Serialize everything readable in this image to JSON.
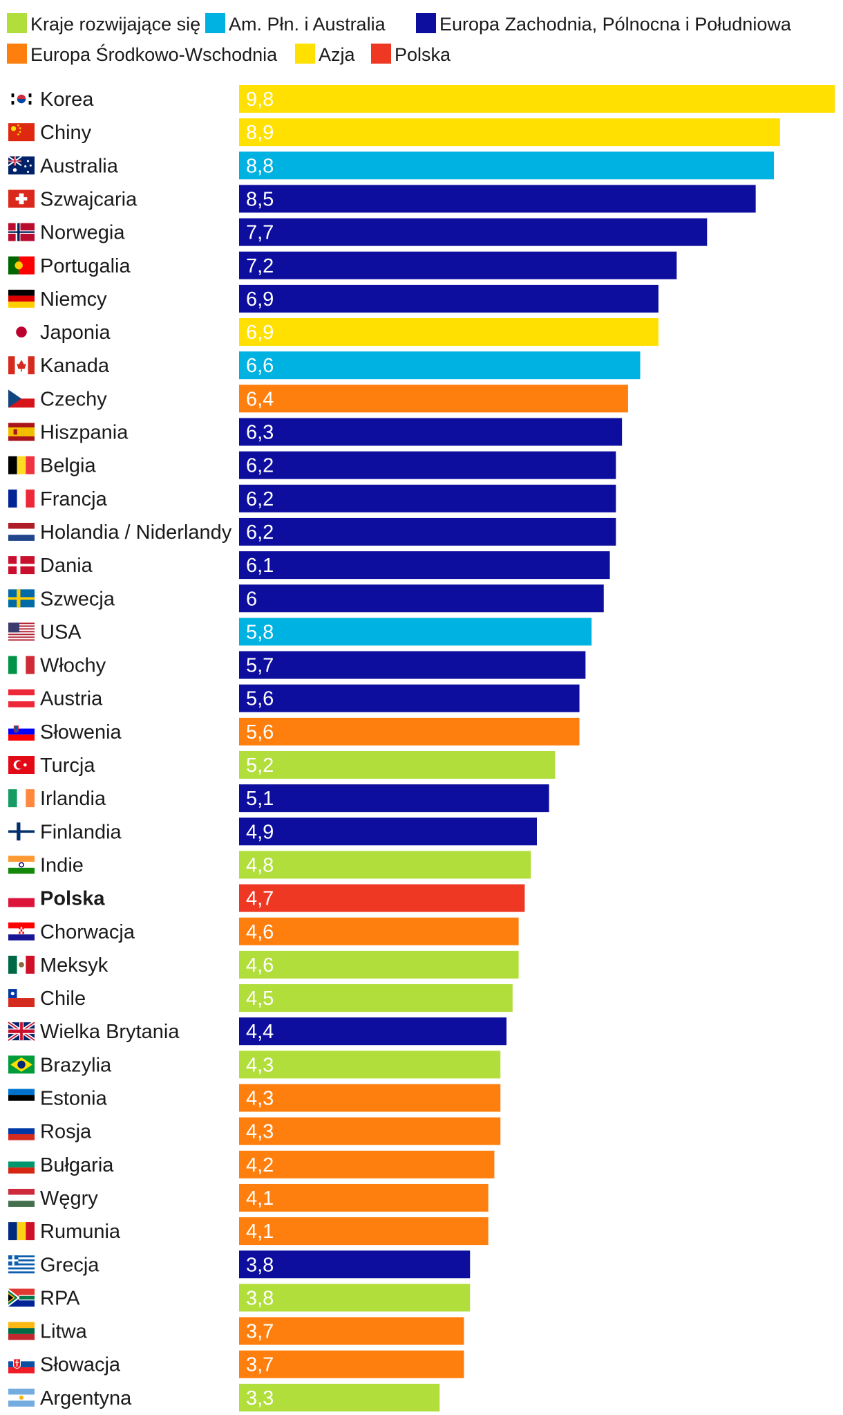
{
  "colors": {
    "rozwijajace": "#b1de3a",
    "amerykaAustralia": "#00b2e2",
    "europaZach": "#0d0d9e",
    "europaSrWsch": "#ff7f0e",
    "azja": "#ffe000",
    "polska": "#ef3823"
  },
  "legend": [
    {
      "label": "Kraje rozwijające się",
      "group": "rozwijajace"
    },
    {
      "label": "Am. Płn. i Australia",
      "group": "amerykaAustralia"
    },
    {
      "label": "Europa Zachodnia, Pólnocna i Południowa",
      "group": "europaZach"
    },
    {
      "label": "Europa Środkowo-Wschodnia",
      "group": "europaSrWsch"
    },
    {
      "label": "Azja",
      "group": "azja"
    },
    {
      "label": "Polska",
      "group": "polska"
    }
  ],
  "chart_data": {
    "type": "bar",
    "orientation": "horizontal",
    "xlim": [
      0,
      9.8
    ],
    "categories": [
      "Korea",
      "Chiny",
      "Australia",
      "Szwajcaria",
      "Norwegia",
      "Portugalia",
      "Niemcy",
      "Japonia",
      "Kanada",
      "Czechy",
      "Hiszpania",
      "Belgia",
      "Francja",
      "Holandia / Niderlandy",
      "Dania",
      "Szwecja",
      "USA",
      "Włochy",
      "Austria",
      "Słowenia",
      "Turcja",
      "Irlandia",
      "Finlandia",
      "Indie",
      "Polska",
      "Chorwacja",
      "Meksyk",
      "Chile",
      "Wielka Brytania",
      "Brazylia",
      "Estonia",
      "Rosja",
      "Bułgaria",
      "Węgry",
      "Rumunia",
      "Grecja",
      "RPA",
      "Litwa",
      "Słowacja",
      "Argentyna"
    ],
    "values": [
      9.8,
      8.9,
      8.8,
      8.5,
      7.7,
      7.2,
      6.9,
      6.9,
      6.6,
      6.4,
      6.3,
      6.2,
      6.2,
      6.2,
      6.1,
      6,
      5.8,
      5.7,
      5.6,
      5.6,
      5.2,
      5.1,
      4.9,
      4.8,
      4.7,
      4.6,
      4.6,
      4.5,
      4.4,
      4.3,
      4.3,
      4.3,
      4.2,
      4.1,
      4.1,
      3.8,
      3.8,
      3.7,
      3.7,
      3.3
    ],
    "value_labels": [
      "9,8",
      "8,9",
      "8,8",
      "8,5",
      "7,7",
      "7,2",
      "6,9",
      "6,9",
      "6,6",
      "6,4",
      "6,3",
      "6,2",
      "6,2",
      "6,2",
      "6,1",
      "6",
      "5,8",
      "5,7",
      "5,6",
      "5,6",
      "5,2",
      "5,1",
      "4,9",
      "4,8",
      "4,7",
      "4,6",
      "4,6",
      "4,5",
      "4,4",
      "4,3",
      "4,3",
      "4,3",
      "4,2",
      "4,1",
      "4,1",
      "3,8",
      "3,8",
      "3,7",
      "3,7",
      "3,3"
    ],
    "groups": [
      "azja",
      "azja",
      "amerykaAustralia",
      "europaZach",
      "europaZach",
      "europaZach",
      "europaZach",
      "azja",
      "amerykaAustralia",
      "europaSrWsch",
      "europaZach",
      "europaZach",
      "europaZach",
      "europaZach",
      "europaZach",
      "europaZach",
      "amerykaAustralia",
      "europaZach",
      "europaZach",
      "europaSrWsch",
      "rozwijajace",
      "europaZach",
      "europaZach",
      "rozwijajace",
      "polska",
      "europaSrWsch",
      "rozwijajace",
      "rozwijajace",
      "europaZach",
      "rozwijajace",
      "europaSrWsch",
      "europaSrWsch",
      "europaSrWsch",
      "europaSrWsch",
      "europaSrWsch",
      "europaZach",
      "rozwijajace",
      "europaSrWsch",
      "europaSrWsch",
      "rozwijajace"
    ],
    "flags": [
      "kr",
      "cn",
      "au",
      "ch",
      "no",
      "pt",
      "de",
      "jp",
      "ca",
      "cz",
      "es",
      "be",
      "fr",
      "nl",
      "dk",
      "se",
      "us",
      "it",
      "at",
      "si",
      "tr",
      "ie",
      "fi",
      "in",
      "pl",
      "hr",
      "mx",
      "cl",
      "gb",
      "br",
      "ee",
      "ru",
      "bg",
      "hu",
      "ro",
      "gr",
      "za",
      "lt",
      "sk",
      "ar"
    ],
    "highlight": "Polska"
  }
}
